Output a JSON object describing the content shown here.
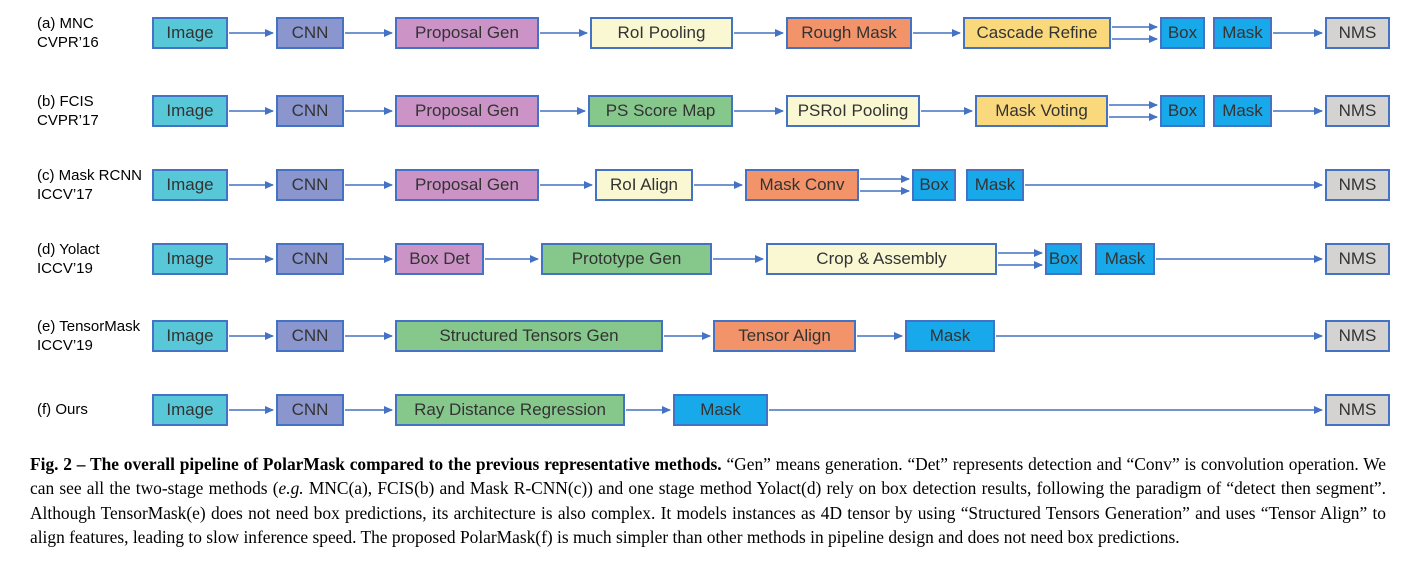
{
  "palette": {
    "cyan": "#58C8D9",
    "purple": "#8B96CE",
    "pink": "#CC93C6",
    "cream": "#FAF8D3",
    "orange": "#F2936A",
    "gold": "#FAD87C",
    "green": "#86C78C",
    "blue": "#18A9EA",
    "gray": "#D5D2D2",
    "border": "#4472C4",
    "arrow": "#4472C4"
  },
  "figure": {
    "rows": [
      {
        "id": "a",
        "label": [
          "(a) MNC",
          "CVPR’16"
        ],
        "nodes": [
          {
            "label": "Image",
            "color": "cyan"
          },
          {
            "label": "CNN",
            "color": "purple"
          },
          {
            "label": "Proposal Gen",
            "color": "pink"
          },
          {
            "label": "RoI Pooling",
            "color": "cream"
          },
          {
            "label": "Rough Mask",
            "color": "orange"
          },
          {
            "label": "Cascade Refine",
            "color": "gold"
          },
          {
            "label": "Box",
            "color": "blue"
          },
          {
            "label": "Mask",
            "color": "blue"
          },
          {
            "label": "NMS",
            "color": "gray"
          }
        ]
      },
      {
        "id": "b",
        "label": [
          "(b) FCIS",
          "CVPR’17"
        ],
        "nodes": [
          {
            "label": "Image",
            "color": "cyan"
          },
          {
            "label": "CNN",
            "color": "purple"
          },
          {
            "label": "Proposal Gen",
            "color": "pink"
          },
          {
            "label": "PS Score Map",
            "color": "green"
          },
          {
            "label": "PSRoI Pooling",
            "color": "cream"
          },
          {
            "label": "Mask Voting",
            "color": "gold"
          },
          {
            "label": "Box",
            "color": "blue"
          },
          {
            "label": "Mask",
            "color": "blue"
          },
          {
            "label": "NMS",
            "color": "gray"
          }
        ]
      },
      {
        "id": "c",
        "label": [
          "(c) Mask RCNN",
          "ICCV’17"
        ],
        "nodes": [
          {
            "label": "Image",
            "color": "cyan"
          },
          {
            "label": "CNN",
            "color": "purple"
          },
          {
            "label": "Proposal Gen",
            "color": "pink"
          },
          {
            "label": "RoI Align",
            "color": "cream"
          },
          {
            "label": "Mask Conv",
            "color": "orange"
          },
          {
            "label": "Box",
            "color": "blue"
          },
          {
            "label": "Mask",
            "color": "blue"
          },
          {
            "label": "NMS",
            "color": "gray"
          }
        ]
      },
      {
        "id": "d",
        "label": [
          "(d) Yolact",
          "ICCV’19"
        ],
        "nodes": [
          {
            "label": "Image",
            "color": "cyan"
          },
          {
            "label": "CNN",
            "color": "purple"
          },
          {
            "label": "Box Det",
            "color": "pink"
          },
          {
            "label": "Prototype Gen",
            "color": "green"
          },
          {
            "label": "Crop & Assembly",
            "color": "cream"
          },
          {
            "label": "Box",
            "color": "blue"
          },
          {
            "label": "Mask",
            "color": "blue"
          },
          {
            "label": "NMS",
            "color": "gray"
          }
        ]
      },
      {
        "id": "e",
        "label": [
          "(e) TensorMask",
          "ICCV’19"
        ],
        "nodes": [
          {
            "label": "Image",
            "color": "cyan"
          },
          {
            "label": "CNN",
            "color": "purple"
          },
          {
            "label": "Structured Tensors Gen",
            "color": "green"
          },
          {
            "label": "Tensor Align",
            "color": "orange"
          },
          {
            "label": "Mask",
            "color": "blue"
          },
          {
            "label": "NMS",
            "color": "gray"
          }
        ]
      },
      {
        "id": "f",
        "label": [
          "(f) Ours"
        ],
        "nodes": [
          {
            "label": "Image",
            "color": "cyan"
          },
          {
            "label": "CNN",
            "color": "purple"
          },
          {
            "label": "Ray Distance Regression",
            "color": "green"
          },
          {
            "label": "Mask",
            "color": "blue"
          },
          {
            "label": "NMS",
            "color": "gray"
          }
        ]
      }
    ]
  },
  "caption": {
    "bold": "Fig. 2 – The overall pipeline of PolarMask compared to the previous representative methods.",
    "pre_italic": " “Gen” means generation. “Det” represents detection and “Conv” is convolution operation. We can see all the two-stage methods (",
    "italic": "e.g.",
    "post_italic": " MNC(a), FCIS(b) and Mask R-CNN(c)) and one stage method Yolact(d) rely on box detection results, following the paradigm of “detect then segment”. Although TensorMask(e) does not need box predictions, its architecture is also complex. It models instances as 4D tensor by using “Structured Tensors Generation” and uses “Tensor Align” to align features, leading to slow inference speed. The proposed PolarMask(f) is much simpler than other methods in pipeline design and does not need box predictions."
  }
}
